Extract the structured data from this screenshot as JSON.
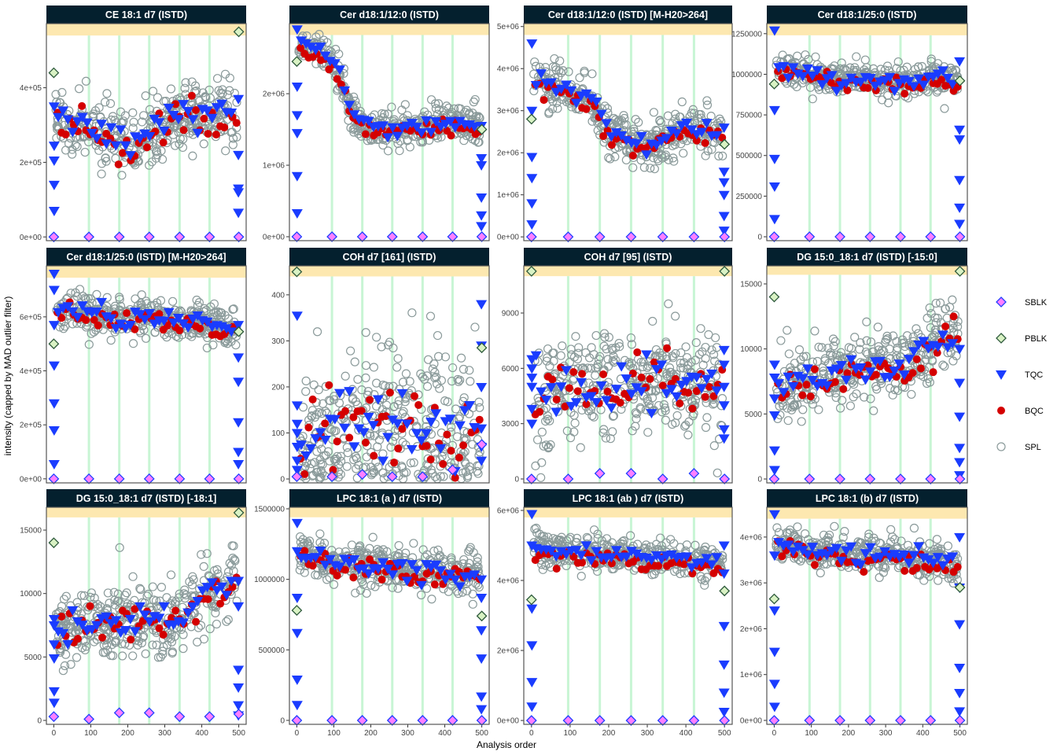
{
  "chart_data": {
    "type": "scatter",
    "xlabel": "Analysis order",
    "ylabel": "intensity (capped by MAD outlier filter)",
    "xlim": [
      -20,
      520
    ],
    "xticks": [
      0,
      100,
      200,
      300,
      400,
      500
    ],
    "batch_boundaries": [
      95,
      177,
      258,
      340,
      421
    ],
    "sblk_x": [
      0,
      95,
      177,
      258,
      340,
      421,
      500
    ],
    "legend": {
      "position": "right",
      "entries": [
        {
          "name": "SBLK",
          "shape": "diamond",
          "fill": "#ff80ff",
          "stroke": "#2040ff"
        },
        {
          "name": "PBLK",
          "shape": "diamond",
          "fill": "#d9f2c4",
          "stroke": "#2e5a3c"
        },
        {
          "name": "TQC",
          "shape": "triangle-down",
          "fill": "#1a3cff",
          "stroke": "#1a3cff"
        },
        {
          "name": "BQC",
          "shape": "circle-filled",
          "fill": "#d40000",
          "stroke": "#d40000"
        },
        {
          "name": "SPL",
          "shape": "circle-open",
          "fill": "none",
          "stroke": "#8a9a9a"
        }
      ]
    },
    "colors": {
      "strip": "#04202e",
      "cap_band": "#fde8b0",
      "batch_line": "#c8f5d4"
    },
    "panels": [
      {
        "title": "CE 18:1 d7 (ISTD)",
        "ylim": [
          -10000,
          572000
        ],
        "cap": 540000,
        "yticks": [
          0,
          200000,
          400000
        ],
        "yticklabels": [
          "0e+00",
          "2e+05",
          "4e+05"
        ],
        "spl_trend": [
          330000,
          300000,
          300000,
          270000,
          240000,
          260000,
          300000,
          320000,
          320000,
          340000,
          330000
        ],
        "sd": 45000,
        "tqc_start": [
          350000,
          245000,
          205000,
          140000,
          70000
        ],
        "tqc_end": [
          370000,
          220000,
          130000,
          120000,
          65000
        ],
        "sblk": [
          0,
          0,
          0,
          0,
          0,
          0,
          0
        ],
        "pblk": [
          440000,
          550000
        ]
      },
      {
        "title": "Cer d18:1/12:0 (ISTD)",
        "ylim": [
          -55000,
          2980000
        ],
        "cap": 2820000,
        "yticks": [
          0,
          1000000,
          2000000
        ],
        "yticklabels": [
          "0e+00",
          "1e+06",
          "2e+06"
        ],
        "spl_trend": [
          2700000,
          2600000,
          2450000,
          1700000,
          1500000,
          1500000,
          1550000,
          1550000,
          1600000,
          1600000,
          1500000
        ],
        "sd": 120000,
        "tqc_start": [
          2900000,
          2100000,
          1700000,
          1450000,
          850000,
          330000
        ],
        "tqc_end": [
          1550000,
          1100000,
          1000000,
          550000,
          300000,
          150000
        ],
        "sblk": [
          0,
          0,
          0,
          0,
          0,
          0,
          0
        ],
        "pblk": [
          2450000,
          1500000
        ]
      },
      {
        "title": "Cer d18:1/12:0 (ISTD) [M-H20>264]",
        "ylim": [
          -90000,
          5070000
        ],
        "cap": 4800000,
        "yticks": [
          0,
          1000000,
          2000000,
          3000000,
          4000000,
          5000000
        ],
        "yticklabels": [
          "0e+00",
          "1e+06",
          "2e+06",
          "3e+06",
          "4e+06",
          "5e+06"
        ],
        "spl_trend": [
          3700000,
          3600000,
          3500000,
          3200000,
          2500000,
          2300000,
          2100000,
          2400000,
          2600000,
          2500000,
          2500000
        ],
        "sd": 280000,
        "tqc_start": [
          4600000,
          3000000,
          1900000,
          1400000,
          800000,
          300000
        ],
        "tqc_end": [
          2600000,
          1550000,
          1300000,
          1000000,
          500000,
          150000
        ],
        "sblk": [
          0,
          0,
          0,
          0,
          0,
          0,
          0
        ],
        "pblk": [
          2800000,
          2200000
        ]
      },
      {
        "title": "Cer d18:1/25:0 (ISTD)",
        "ylim": [
          -24000,
          1312000
        ],
        "cap": 1240000,
        "yticks": [
          0,
          250000,
          500000,
          750000,
          1000000,
          1250000
        ],
        "yticklabels": [
          "0",
          "250000",
          "500000",
          "750000",
          "1000000",
          "1250000"
        ],
        "spl_trend": [
          1050000,
          1020000,
          1000000,
          980000,
          980000,
          970000,
          970000,
          970000,
          970000,
          970000,
          960000
        ],
        "sd": 50000,
        "tqc_start": [
          1270000,
          780000,
          480000,
          310000,
          110000
        ],
        "tqc_end": [
          1080000,
          660000,
          600000,
          350000,
          180000,
          80000
        ],
        "sblk": [
          0,
          0,
          0,
          0,
          0,
          0,
          0
        ],
        "pblk": [
          940000,
          960000
        ]
      },
      {
        "title": "Cer d18:1/25:0 (ISTD) [M-H20>264]",
        "ylim": [
          -15000,
          789000
        ],
        "cap": 745000,
        "yticks": [
          0,
          200000,
          400000,
          600000
        ],
        "yticklabels": [
          "0e+00",
          "2e+05",
          "4e+05",
          "6e+05"
        ],
        "spl_trend": [
          630000,
          620000,
          620000,
          600000,
          600000,
          610000,
          590000,
          580000,
          580000,
          560000,
          560000
        ],
        "sd": 35000,
        "tqc_start": [
          760000,
          700000,
          570000,
          420000,
          280000,
          180000,
          55000
        ],
        "tqc_end": [
          570000,
          450000,
          360000,
          210000,
          100000,
          55000
        ],
        "sblk": [
          0,
          0,
          0,
          0,
          0,
          0,
          0
        ],
        "pblk": [
          500000,
          545000
        ]
      },
      {
        "title": "COH d7 [161] (ISTD)",
        "ylim": [
          -8.5,
          463
        ],
        "cap": 440,
        "yticks": [
          0,
          100,
          200,
          300,
          400
        ],
        "yticklabels": [
          "0",
          "100",
          "200",
          "300",
          "400"
        ],
        "spl_trend": [
          60,
          80,
          100,
          120,
          120,
          110,
          110,
          110,
          100,
          100,
          100
        ],
        "sd": 95,
        "tqc_start": [
          355,
          160,
          120,
          100,
          70,
          40,
          20
        ],
        "tqc_end": [
          380,
          290,
          200,
          110,
          70,
          40
        ],
        "sblk": [
          5,
          5,
          10,
          5,
          5,
          20,
          75
        ],
        "pblk": [
          450,
          285
        ]
      },
      {
        "title": "COH d7 [95] (ISTD)",
        "ylim": [
          -213,
          11560
        ],
        "cap": 11000,
        "yticks": [
          0,
          3000,
          6000,
          9000
        ],
        "yticklabels": [
          "0",
          "3000",
          "6000",
          "9000"
        ],
        "spl_trend": [
          4500,
          4800,
          5000,
          5200,
          5200,
          5200,
          5300,
          5200,
          5200,
          5200,
          5000
        ],
        "sd": 1500,
        "tqc_start": [
          6500,
          6000,
          5500,
          5000,
          3800,
          3000
        ],
        "tqc_end": [
          7000,
          6200,
          5000,
          4000,
          2700,
          2200
        ],
        "sblk": [
          0,
          0,
          300,
          300,
          0,
          300,
          0
        ],
        "pblk": [
          11300,
          11300
        ]
      },
      {
        "title": "DG 15:0_18:1 d7 (ISTD) [-15:0]",
        "ylim": [
          -300,
          16390
        ],
        "cap": 15700,
        "yticks": [
          0,
          5000,
          10000,
          15000
        ],
        "yticklabels": [
          "0",
          "5000",
          "10000",
          "15000"
        ],
        "spl_trend": [
          7000,
          7200,
          7500,
          8000,
          8500,
          8500,
          8500,
          8700,
          9500,
          11000,
          11000
        ],
        "sd": 1300,
        "tqc_start": [
          8800,
          7800,
          6200,
          4900,
          2200,
          700
        ],
        "tqc_end": [
          10000,
          7400,
          4800,
          2400,
          1300,
          300
        ],
        "sblk": [
          0,
          0,
          0,
          0,
          0,
          0,
          0
        ],
        "pblk": [
          14000,
          16000
        ]
      },
      {
        "title": "DG 15:0_18:1 d7 (ISTD) [-18:1]",
        "ylim": [
          -310,
          16800
        ],
        "cap": 16000,
        "yticks": [
          0,
          5000,
          10000,
          15000
        ],
        "yticklabels": [
          "0",
          "5000",
          "10000",
          "15000"
        ],
        "spl_trend": [
          7500,
          7500,
          7600,
          8000,
          7800,
          8000,
          8200,
          8500,
          9500,
          10500,
          11000
        ],
        "sd": 1400,
        "tqc_start": [
          8000,
          7500,
          6000,
          4900,
          2300,
          1400
        ],
        "tqc_end": [
          11000,
          9000,
          4000,
          2600,
          1200,
          400
        ],
        "sblk": [
          300,
          100,
          600,
          600,
          300,
          300,
          500
        ],
        "pblk": [
          14000,
          16400
        ]
      },
      {
        "title": "LPC 18:1 (a ) d7 (ISTD)",
        "ylim": [
          -28000,
          1511000
        ],
        "cap": 1440000,
        "yticks": [
          0,
          500000,
          1000000,
          1500000
        ],
        "yticklabels": [
          "0",
          "500000",
          "1000000",
          "1500000"
        ],
        "spl_trend": [
          1200000,
          1150000,
          1120000,
          1100000,
          1100000,
          1080000,
          1070000,
          1060000,
          1050000,
          1050000,
          1050000
        ],
        "sd": 80000,
        "tqc_start": [
          1400000,
          1200000,
          870000,
          620000,
          290000,
          110000
        ],
        "tqc_end": [
          1000000,
          870000,
          640000,
          440000,
          170000,
          80000
        ],
        "sblk": [
          0,
          0,
          0,
          0,
          0,
          0,
          0
        ],
        "pblk": [
          780000,
          740000
        ]
      },
      {
        "title": "LPC 18:1 (ab ) d7 (ISTD)",
        "ylim": [
          -110000,
          6090000
        ],
        "cap": 5800000,
        "yticks": [
          0,
          2000000,
          4000000,
          6000000
        ],
        "yticklabels": [
          "0e+00",
          "2e+06",
          "4e+06",
          "6e+06"
        ],
        "spl_trend": [
          5000000,
          4900000,
          4800000,
          4800000,
          4700000,
          4700000,
          4600000,
          4600000,
          4600000,
          4500000,
          4500000
        ],
        "sd": 250000,
        "tqc_start": [
          5900000,
          5000000,
          3200000,
          2150000,
          1100000,
          400000
        ],
        "tqc_end": [
          5000000,
          4200000,
          2700000,
          1600000,
          800000,
          250000
        ],
        "sblk": [
          0,
          0,
          0,
          0,
          0,
          0,
          0
        ],
        "pblk": [
          3450000,
          3700000
        ]
      },
      {
        "title": "LPC 18:1 (b) d7 (ISTD)",
        "ylim": [
          -86000,
          4650000
        ],
        "cap": 4400000,
        "yticks": [
          0,
          1000000,
          2000000,
          3000000,
          4000000
        ],
        "yticklabels": [
          "0e+00",
          "1e+06",
          "2e+06",
          "3e+06",
          "4e+06"
        ],
        "spl_trend": [
          3900000,
          3800000,
          3700000,
          3700000,
          3600000,
          3600000,
          3600000,
          3600000,
          3500000,
          3500000,
          3400000
        ],
        "sd": 200000,
        "tqc_start": [
          4500000,
          3600000,
          2400000,
          1500000,
          800000,
          300000
        ],
        "tqc_end": [
          4000000,
          2900000,
          2100000,
          1150000,
          600000,
          200000
        ],
        "sblk": [
          0,
          0,
          0,
          0,
          0,
          0,
          0
        ],
        "pblk": [
          2650000,
          2900000
        ]
      }
    ]
  }
}
